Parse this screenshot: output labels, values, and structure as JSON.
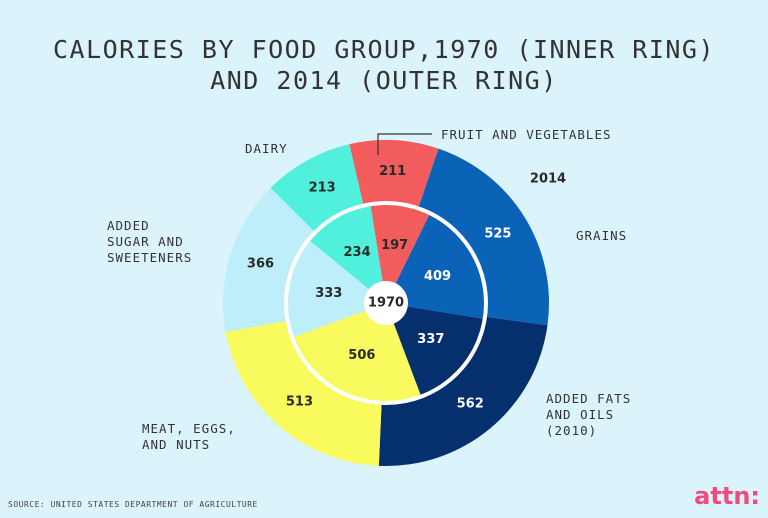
{
  "chart_data": {
    "type": "pie",
    "subtype": "nested-donut",
    "title": "CALORIES BY FOOD GROUP,1970 (INNER RING) AND 2014 (OUTER RING)",
    "categories": [
      "FRUIT AND VEGETABLES",
      "GRAINS",
      "ADDED FATS AND OILS (2010)",
      "MEAT, EGGS, AND NUTS",
      "ADDED SUGAR AND SWEETENERS",
      "DAIRY"
    ],
    "colors": [
      "#f25c5c",
      "#0b63b8",
      "#062f6e",
      "#f8fa5e",
      "#bdeefa",
      "#50f0dc"
    ],
    "label_colors": [
      "#2a2a2a",
      "#ffffff",
      "#ffffff",
      "#2a2a2a",
      "#2a2a2a",
      "#2a2a2a"
    ],
    "series": [
      {
        "name": "1970",
        "values": [
          197,
          409,
          337,
          506,
          333,
          234
        ]
      },
      {
        "name": "2014",
        "values": [
          211,
          525,
          562,
          513,
          366,
          213
        ]
      }
    ],
    "center_label": "1970",
    "outer_ring_label": "2014",
    "legend": "none"
  },
  "labels": {
    "fruit": "FRUIT AND VEGETABLES",
    "grains": "GRAINS",
    "fats": "ADDED FATS\nAND OILS\n(2010)",
    "meat": "MEAT, EGGS,\nAND NUTS",
    "sugar": "ADDED\nSUGAR AND\nSWEETENERS",
    "dairy": "DAIRY"
  },
  "source": "SOURCE: UNITED STATES DEPARTMENT OF AGRICULTURE",
  "logo": "attn:"
}
